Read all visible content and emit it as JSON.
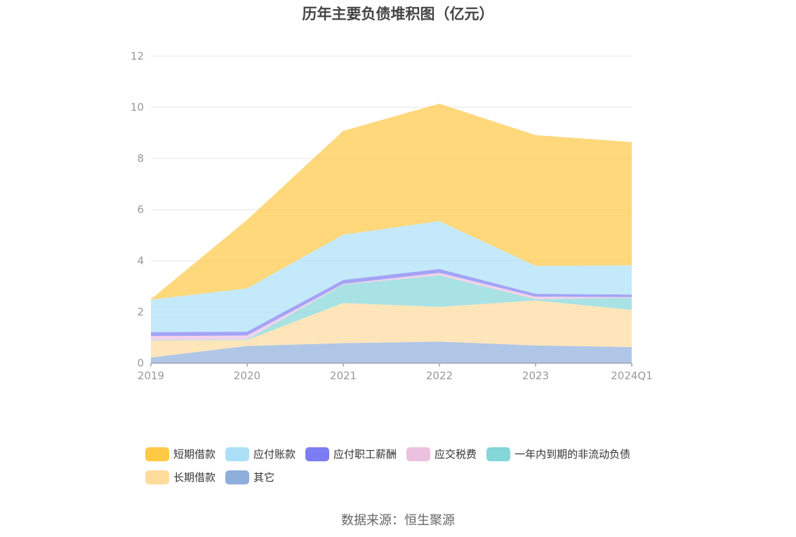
{
  "chart_data": {
    "type": "area",
    "stacked": true,
    "title": "历年主要负债堆积图（亿元）",
    "categories": [
      "2019",
      "2020",
      "2021",
      "2022",
      "2023",
      "2024Q1"
    ],
    "ylim": [
      0,
      12
    ],
    "yticks": [
      "0",
      "2",
      "4",
      "6",
      "8",
      "10",
      "12"
    ],
    "grid": true,
    "legend_position": "bottom",
    "series": [
      {
        "name": "其它",
        "color": "#8eaedb",
        "values": [
          0.22,
          0.67,
          0.78,
          0.84,
          0.69,
          0.63
        ]
      },
      {
        "name": "长期借款",
        "color": "#ffdb9c",
        "values": [
          0.66,
          0.23,
          1.57,
          1.36,
          1.76,
          1.45
        ]
      },
      {
        "name": "一年内到期的非流动负债",
        "color": "#84d6d9",
        "values": [
          0.02,
          0.03,
          0.72,
          1.23,
          0.05,
          0.48
        ]
      },
      {
        "name": "应交税费",
        "color": "#ecc0df",
        "values": [
          0.16,
          0.15,
          0.03,
          0.1,
          0.1,
          0.02
        ]
      },
      {
        "name": "应付职工薪酬",
        "color": "#7c7df2",
        "values": [
          0.15,
          0.15,
          0.15,
          0.15,
          0.11,
          0.1
        ]
      },
      {
        "name": "应付账款",
        "color": "#abdff8",
        "values": [
          1.27,
          1.69,
          1.77,
          1.87,
          1.09,
          1.14
        ]
      },
      {
        "name": "短期借款",
        "color": "#ffc845",
        "values": [
          0.02,
          2.68,
          4.06,
          4.59,
          5.11,
          4.82
        ]
      }
    ],
    "legend_order": [
      "短期借款",
      "应付账款",
      "应付职工薪酬",
      "应交税费",
      "一年内到期的非流动负债",
      "长期借款",
      "其它"
    ]
  },
  "source": "数据来源：恒生聚源"
}
